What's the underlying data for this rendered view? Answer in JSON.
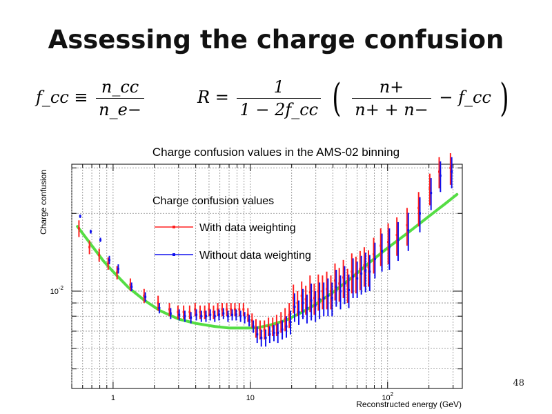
{
  "slide": {
    "title": "Assessing the charge confusion",
    "page_number": "48"
  },
  "formulas": {
    "left": {
      "lhs": "f_cc ≡",
      "numerator": "n_cc",
      "denominator": "n_e−"
    },
    "right": {
      "lhs": "R =",
      "frac1_num": "1",
      "frac1_den": "1 − 2f_cc",
      "frac2_num": "n+",
      "frac2_den": "n+ + n−",
      "tail": "− f_cc"
    }
  },
  "chart_data": {
    "type": "scatter",
    "title": "Charge confusion values in the AMS-02 binning",
    "xlabel": "Reconstructed energy (GeV)",
    "ylabel": "Charge confusion",
    "xscale": "log",
    "yscale": "log",
    "xlim": [
      0.5,
      350
    ],
    "ylim": [
      0.0042,
      0.031
    ],
    "xticks": [
      {
        "value": 1,
        "label": "1"
      },
      {
        "value": 10,
        "label": "10"
      },
      {
        "value": 100,
        "label": "10",
        "sup": "2"
      }
    ],
    "yticks": [
      {
        "value": 0.01,
        "label": "10",
        "sup": "-2"
      }
    ],
    "grid": true,
    "legend": {
      "title": "Charge confusion values",
      "placement": "top-left",
      "entries": [
        "With data weighting",
        "Without data weighting"
      ]
    },
    "x": [
      0.57,
      0.68,
      0.8,
      0.93,
      1.08,
      1.35,
      1.7,
      2.15,
      2.6,
      3.0,
      3.3,
      3.65,
      4.0,
      4.35,
      4.7,
      5.05,
      5.45,
      5.85,
      6.3,
      6.8,
      7.3,
      7.8,
      8.4,
      9.0,
      9.7,
      10.4,
      11.1,
      11.9,
      12.8,
      13.7,
      14.7,
      15.7,
      16.9,
      18.1,
      19.4,
      20.8,
      22.3,
      23.9,
      25.6,
      27.5,
      29.5,
      31.6,
      33.9,
      36.4,
      39.0,
      41.8,
      44.9,
      48.1,
      51.6,
      55.4,
      59.4,
      63.7,
      68.3,
      73.3,
      80.0,
      90.0,
      102,
      118,
      140,
      170,
      205,
      240,
      290
    ],
    "series": [
      {
        "name": "With data weighting",
        "color": "#ff2020",
        "values": [
          0.0175,
          0.0148,
          0.0138,
          0.0128,
          0.0118,
          0.0106,
          0.0096,
          0.009,
          0.0085,
          0.0083,
          0.0083,
          0.0083,
          0.0085,
          0.0083,
          0.0083,
          0.0085,
          0.0083,
          0.0085,
          0.0085,
          0.0085,
          0.0085,
          0.0085,
          0.0085,
          0.0085,
          0.0081,
          0.0077,
          0.0072,
          0.0071,
          0.0071,
          0.0073,
          0.0073,
          0.0074,
          0.0076,
          0.0078,
          0.0081,
          0.0094,
          0.009,
          0.0096,
          0.0093,
          0.0099,
          0.0094,
          0.01,
          0.01,
          0.0102,
          0.01,
          0.011,
          0.0107,
          0.0113,
          0.0106,
          0.0119,
          0.0117,
          0.0122,
          0.0126,
          0.0124,
          0.0139,
          0.015,
          0.0155,
          0.0165,
          0.018,
          0.021,
          0.025,
          0.029,
          0.03
        ],
        "err_low": [
          0.0013,
          0.0009,
          0.0008,
          0.0007,
          0.0007,
          0.0006,
          0.0006,
          0.0006,
          0.0005,
          0.0005,
          0.0005,
          0.0005,
          0.0005,
          0.0005,
          0.0005,
          0.0005,
          0.0005,
          0.0005,
          0.0005,
          0.0005,
          0.0005,
          0.0005,
          0.0005,
          0.0005,
          0.0005,
          0.0005,
          0.0006,
          0.0006,
          0.0006,
          0.0006,
          0.0006,
          0.0007,
          0.0007,
          0.0008,
          0.0009,
          0.0012,
          0.001,
          0.0013,
          0.0012,
          0.0016,
          0.0013,
          0.0016,
          0.0015,
          0.0017,
          0.0015,
          0.0018,
          0.0016,
          0.0019,
          0.0016,
          0.0021,
          0.0019,
          0.0021,
          0.0022,
          0.002,
          0.0022,
          0.0025,
          0.0028,
          0.0028,
          0.003,
          0.0032,
          0.0035,
          0.004,
          0.0042
        ],
        "err_high": [
          0.0013,
          0.0009,
          0.0008,
          0.0007,
          0.0007,
          0.0006,
          0.0006,
          0.0006,
          0.0005,
          0.0005,
          0.0005,
          0.0005,
          0.0005,
          0.0005,
          0.0005,
          0.0005,
          0.0005,
          0.0005,
          0.0005,
          0.0005,
          0.0005,
          0.0005,
          0.0005,
          0.0005,
          0.0005,
          0.0005,
          0.0006,
          0.0006,
          0.0006,
          0.0006,
          0.0006,
          0.0007,
          0.0007,
          0.0008,
          0.0009,
          0.0012,
          0.001,
          0.0013,
          0.0012,
          0.0016,
          0.0013,
          0.0016,
          0.0015,
          0.0017,
          0.0015,
          0.0018,
          0.0016,
          0.0019,
          0.0016,
          0.0021,
          0.0019,
          0.0021,
          0.0022,
          0.002,
          0.0022,
          0.0025,
          0.0028,
          0.0028,
          0.003,
          0.0032,
          0.0035,
          0.004,
          0.0042
        ]
      },
      {
        "name": "Without data weighting",
        "color": "#1010ee",
        "values": [
          0.0195,
          0.017,
          0.0158,
          0.0132,
          0.0122,
          0.0104,
          0.0095,
          0.0086,
          0.0082,
          0.0081,
          0.008,
          0.0079,
          0.0081,
          0.008,
          0.008,
          0.0081,
          0.008,
          0.0081,
          0.0082,
          0.008,
          0.0081,
          0.0081,
          0.008,
          0.0079,
          0.0077,
          0.0073,
          0.0068,
          0.0066,
          0.0066,
          0.0068,
          0.0069,
          0.0069,
          0.0071,
          0.0073,
          0.0076,
          0.0087,
          0.0083,
          0.009,
          0.0086,
          0.0092,
          0.0088,
          0.0093,
          0.0094,
          0.0096,
          0.0094,
          0.0104,
          0.01,
          0.0107,
          0.0101,
          0.0114,
          0.0112,
          0.0117,
          0.012,
          0.0119,
          0.0133,
          0.0143,
          0.0148,
          0.0158,
          0.0172,
          0.02,
          0.024,
          0.028,
          0.029
        ],
        "err_low": [
          0.0003,
          0.0003,
          0.0003,
          0.0005,
          0.0005,
          0.0004,
          0.0004,
          0.0004,
          0.0004,
          0.0004,
          0.0004,
          0.0004,
          0.0004,
          0.0004,
          0.0004,
          0.0004,
          0.0004,
          0.0004,
          0.0004,
          0.0004,
          0.0004,
          0.0004,
          0.0004,
          0.0004,
          0.0004,
          0.0004,
          0.0005,
          0.0005,
          0.0005,
          0.0005,
          0.0005,
          0.0006,
          0.0006,
          0.0007,
          0.0008,
          0.0011,
          0.0009,
          0.0012,
          0.0011,
          0.0015,
          0.0012,
          0.0015,
          0.0014,
          0.0016,
          0.0014,
          0.0017,
          0.0015,
          0.0018,
          0.0015,
          0.002,
          0.0018,
          0.002,
          0.0021,
          0.0019,
          0.0021,
          0.0024,
          0.0027,
          0.0027,
          0.0029,
          0.0031,
          0.0034,
          0.0038,
          0.004
        ],
        "err_high": [
          0.0003,
          0.0003,
          0.0003,
          0.0005,
          0.0005,
          0.0004,
          0.0004,
          0.0004,
          0.0004,
          0.0004,
          0.0004,
          0.0004,
          0.0004,
          0.0004,
          0.0004,
          0.0004,
          0.0004,
          0.0004,
          0.0004,
          0.0004,
          0.0004,
          0.0004,
          0.0004,
          0.0004,
          0.0004,
          0.0004,
          0.0005,
          0.0005,
          0.0005,
          0.0005,
          0.0005,
          0.0006,
          0.0006,
          0.0007,
          0.0008,
          0.0011,
          0.0009,
          0.0012,
          0.0011,
          0.0015,
          0.0012,
          0.0015,
          0.0014,
          0.0016,
          0.0014,
          0.0017,
          0.0015,
          0.0018,
          0.0015,
          0.002,
          0.0018,
          0.002,
          0.0021,
          0.0019,
          0.0021,
          0.0024,
          0.0027,
          0.0027,
          0.0029,
          0.0031,
          0.0034,
          0.0038,
          0.004
        ]
      }
    ],
    "fit": {
      "color": "#55dd44",
      "x": [
        0.55,
        0.7,
        0.85,
        1.0,
        1.3,
        1.7,
        2.2,
        3.0,
        4.0,
        5.5,
        7.0,
        9.0,
        11.0,
        14.0,
        18.0,
        24.0,
        30.0,
        40.0,
        55.0,
        75.0,
        100.0,
        140.0,
        200.0,
        260.0,
        320.0
      ],
      "y": [
        0.0178,
        0.015,
        0.0131,
        0.0119,
        0.0103,
        0.0092,
        0.0084,
        0.0078,
        0.0075,
        0.0073,
        0.0072,
        0.0072,
        0.0072,
        0.0074,
        0.0077,
        0.0083,
        0.0089,
        0.0099,
        0.0113,
        0.013,
        0.0147,
        0.0168,
        0.0195,
        0.0217,
        0.0237
      ]
    }
  }
}
